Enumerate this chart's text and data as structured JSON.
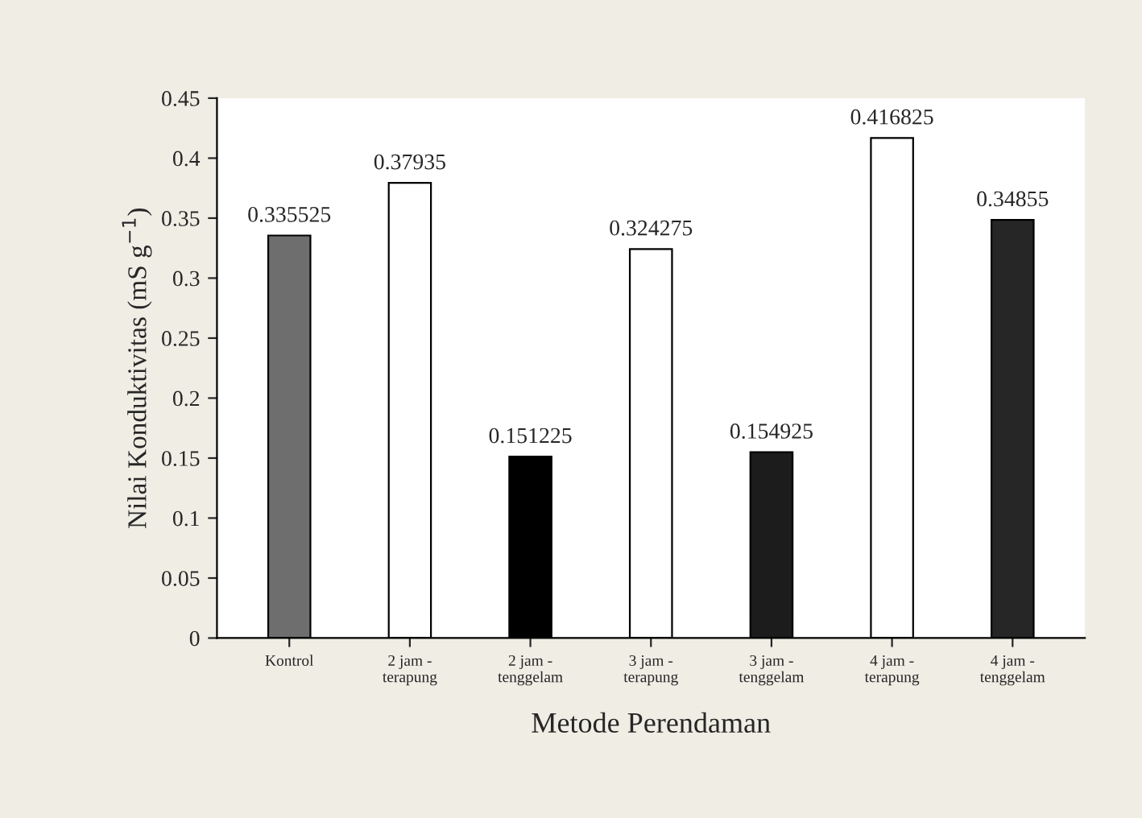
{
  "chart_data": {
    "type": "bar",
    "xlabel": "Metode Perendaman",
    "ylabel": "Nilai Konduktivitas (mS g$^{−1}$)",
    "categories": [
      "Kontrol",
      "2 jam -\nterapung",
      "2 jam -\ntenggelam",
      "3 jam -\nterapung",
      "3 jam -\ntenggelam",
      "4 jam -\nterapung",
      "4 jam -\ntenggelam"
    ],
    "values": [
      0.335525,
      0.37935,
      0.151225,
      0.324275,
      0.154925,
      0.416825,
      0.34855
    ],
    "colors": [
      "#6e6e6e",
      "#ffffff",
      "#000000",
      "#ffffff",
      "#1c1c1c",
      "#ffffff",
      "#262626"
    ],
    "ylim": [
      0,
      0.45
    ],
    "yticks": [
      0,
      0.05,
      0.1,
      0.15,
      0.2,
      0.25,
      0.3,
      0.35,
      0.4,
      0.45
    ],
    "data_labels": true,
    "grid": false,
    "legend": false
  }
}
